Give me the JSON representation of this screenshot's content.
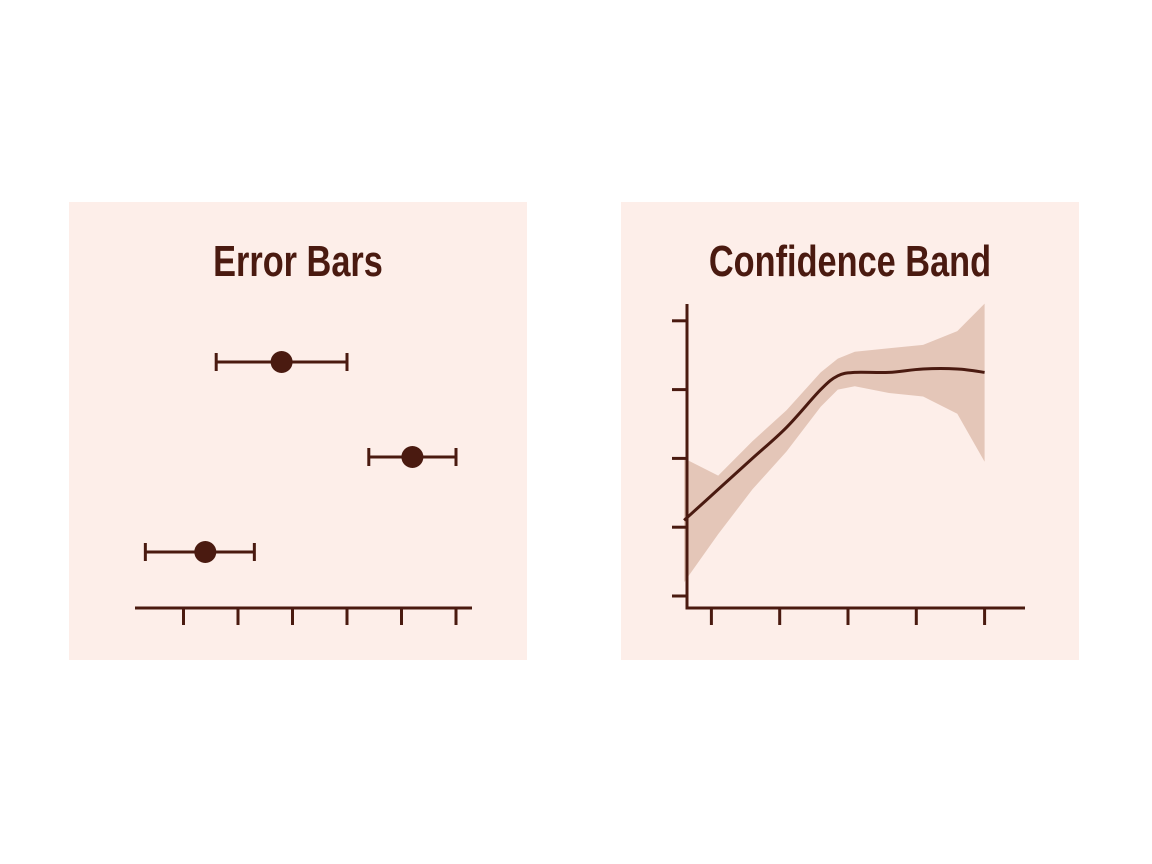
{
  "colors": {
    "panel_bg": "#fdeee9",
    "ink": "#4a1a10",
    "band": "#e4c6b8"
  },
  "chart_data": [
    {
      "type": "scatter",
      "title": "Error Bars",
      "xlim": [
        0,
        6
      ],
      "x_ticks": [
        1,
        2,
        3,
        4,
        5,
        6
      ],
      "tick_labels_shown": false,
      "points": [
        {
          "y_rank": 1,
          "x": 2.8,
          "xerr_low": 1.6,
          "xerr_high": 4.0
        },
        {
          "y_rank": 2,
          "x": 5.2,
          "xerr_low": 4.4,
          "xerr_high": 6.0
        },
        {
          "y_rank": 3,
          "x": 1.4,
          "xerr_low": 0.3,
          "xerr_high": 2.3
        }
      ]
    },
    {
      "type": "line",
      "title": "Confidence Band",
      "xlim": [
        0,
        5
      ],
      "ylim": [
        0,
        4.2
      ],
      "x_ticks": [
        0.65,
        1.65,
        2.65,
        3.65,
        4.65
      ],
      "y_ticks": [
        0,
        1,
        2,
        3,
        4
      ],
      "tick_labels_shown": false,
      "series": [
        {
          "x": [
            0.25,
            0.75,
            1.25,
            1.75,
            2.25,
            2.5,
            2.75,
            3.25,
            3.75,
            4.25,
            4.65
          ],
          "y": [
            1.1,
            1.55,
            2.0,
            2.45,
            3.0,
            3.2,
            3.25,
            3.25,
            3.3,
            3.3,
            3.25
          ],
          "lower": [
            0.2,
            0.9,
            1.55,
            2.1,
            2.75,
            3.0,
            3.05,
            2.95,
            2.9,
            2.65,
            1.95
          ],
          "upper": [
            2.0,
            1.75,
            2.25,
            2.7,
            3.25,
            3.45,
            3.55,
            3.6,
            3.65,
            3.85,
            4.25
          ]
        }
      ]
    }
  ]
}
